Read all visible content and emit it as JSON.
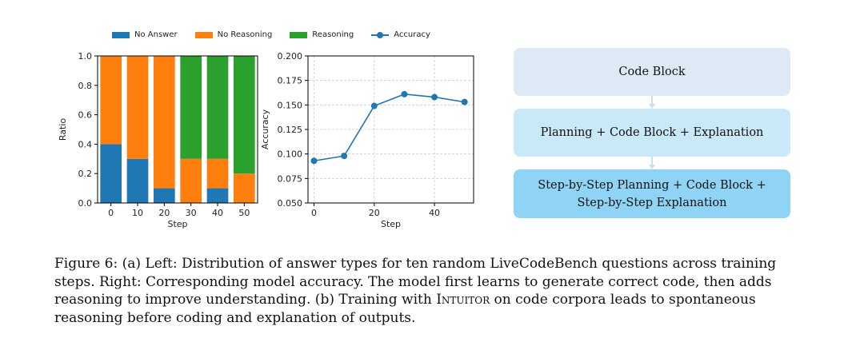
{
  "legend": [
    {
      "label": "No Answer",
      "color": "#1f77b4",
      "kind": "bar"
    },
    {
      "label": "No Reasoning",
      "color": "#ff7f0e",
      "kind": "bar"
    },
    {
      "label": "Reasoning",
      "color": "#2ca02c",
      "kind": "bar"
    },
    {
      "label": "Accuracy",
      "color": "#1f77b4",
      "kind": "line"
    }
  ],
  "chart_data": [
    {
      "type": "bar",
      "stacked": true,
      "xlabel": "Step",
      "ylabel": "Ratio",
      "ylim": [
        0,
        1.0
      ],
      "yticks": [
        "0.0",
        "0.2",
        "0.4",
        "0.6",
        "0.8",
        "1.0"
      ],
      "categories": [
        "0",
        "10",
        "20",
        "30",
        "40",
        "50"
      ],
      "series": [
        {
          "name": "No Answer",
          "color": "#1f77b4",
          "values": [
            0.4,
            0.3,
            0.1,
            0.0,
            0.1,
            0.0
          ]
        },
        {
          "name": "No Reasoning",
          "color": "#ff7f0e",
          "values": [
            0.6,
            0.7,
            0.9,
            0.3,
            0.2,
            0.2
          ]
        },
        {
          "name": "Reasoning",
          "color": "#2ca02c",
          "values": [
            0.0,
            0.0,
            0.0,
            0.7,
            0.7,
            0.8
          ]
        }
      ],
      "grid": false
    },
    {
      "type": "line",
      "xlabel": "Step",
      "ylabel": "Accuracy",
      "xlim": [
        -2,
        53
      ],
      "ylim": [
        0.05,
        0.2
      ],
      "xticks": [
        "0",
        "20",
        "40"
      ],
      "yticks": [
        "0.050",
        "0.075",
        "0.100",
        "0.125",
        "0.150",
        "0.175",
        "0.200"
      ],
      "series": [
        {
          "name": "Accuracy",
          "color": "#1f77b4",
          "x": [
            0,
            10,
            20,
            30,
            40,
            50
          ],
          "y": [
            0.093,
            0.098,
            0.149,
            0.161,
            0.158,
            0.153
          ]
        }
      ],
      "grid": true
    }
  ],
  "flow": {
    "boxes": [
      {
        "lines": [
          "Code Block"
        ],
        "color": "#dde9f5"
      },
      {
        "lines": [
          "Planning + Code Block + Explanation"
        ],
        "color": "#c9e8f8"
      },
      {
        "lines": [
          "Step-by-Step Planning + Code Block +",
          "Step-by-Step Explanation"
        ],
        "color": "#8fd4f5"
      }
    ],
    "arrow_color": "#c3e3f4"
  },
  "caption": {
    "part1": "Figure 6: (a) Left: Distribution of answer types for ten random LiveCodeBench questions across training steps. Right: Corresponding model accuracy. The model first learns to generate correct code, then adds reasoning to improve understanding. (b) Training with ",
    "method": "Intuitor",
    "part2": " on code corpora leads to spontaneous reasoning before coding and explanation of outputs."
  }
}
